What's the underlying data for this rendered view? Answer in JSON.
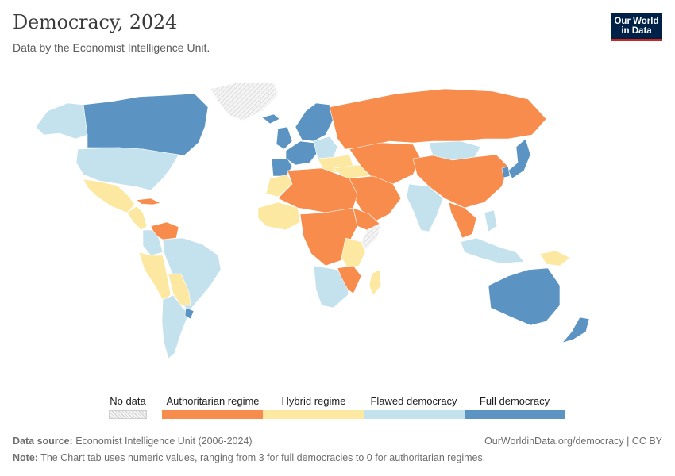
{
  "header": {
    "title": "Democracy, 2024",
    "subtitle": "Data by the Economist Intelligence Unit."
  },
  "logo": {
    "line1": "Our World",
    "line2": "in Data"
  },
  "legend": {
    "items": [
      {
        "label": "No data",
        "color": "hatch"
      },
      {
        "label": "Authoritarian regime",
        "color": "#f78c4c"
      },
      {
        "label": "Hybrid regime",
        "color": "#fce8a1"
      },
      {
        "label": "Flawed democracy",
        "color": "#c4e2ed"
      },
      {
        "label": "Full democracy",
        "color": "#5b93c3"
      }
    ]
  },
  "map": {
    "regions": [
      {
        "name": "canada",
        "category": "Full democracy"
      },
      {
        "name": "alaska",
        "category": "Flawed democracy"
      },
      {
        "name": "greenland",
        "category": "No data"
      },
      {
        "name": "usa",
        "category": "Flawed democracy"
      },
      {
        "name": "mexico",
        "category": "Hybrid regime"
      },
      {
        "name": "central-america",
        "category": "Hybrid regime"
      },
      {
        "name": "cuba",
        "category": "Authoritarian regime"
      },
      {
        "name": "venezuela",
        "category": "Authoritarian regime"
      },
      {
        "name": "colombia",
        "category": "Flawed democracy"
      },
      {
        "name": "ecuador-peru",
        "category": "Hybrid regime"
      },
      {
        "name": "brazil",
        "category": "Flawed democracy"
      },
      {
        "name": "bolivia-paraguay",
        "category": "Hybrid regime"
      },
      {
        "name": "argentina-chile",
        "category": "Flawed democracy"
      },
      {
        "name": "uruguay",
        "category": "Full democracy"
      },
      {
        "name": "iceland",
        "category": "Full democracy"
      },
      {
        "name": "scandinavia",
        "category": "Full democracy"
      },
      {
        "name": "uk-ireland",
        "category": "Full democracy"
      },
      {
        "name": "western-europe",
        "category": "Full democracy"
      },
      {
        "name": "iberia",
        "category": "Full democracy"
      },
      {
        "name": "central-europe",
        "category": "Flawed democracy"
      },
      {
        "name": "eastern-europe",
        "category": "Hybrid regime"
      },
      {
        "name": "turkey",
        "category": "Hybrid regime"
      },
      {
        "name": "russia",
        "category": "Authoritarian regime"
      },
      {
        "name": "kazakhstan-central-asia",
        "category": "Authoritarian regime"
      },
      {
        "name": "mongolia",
        "category": "Flawed democracy"
      },
      {
        "name": "china",
        "category": "Authoritarian regime"
      },
      {
        "name": "japan",
        "category": "Full democracy"
      },
      {
        "name": "south-korea",
        "category": "Full democracy"
      },
      {
        "name": "middle-east",
        "category": "Authoritarian regime"
      },
      {
        "name": "india",
        "category": "Flawed democracy"
      },
      {
        "name": "southeast-asia-mainland",
        "category": "Authoritarian regime"
      },
      {
        "name": "malaysia-indonesia",
        "category": "Flawed democracy"
      },
      {
        "name": "philippines",
        "category": "Flawed democracy"
      },
      {
        "name": "png",
        "category": "Hybrid regime"
      },
      {
        "name": "australia",
        "category": "Full democracy"
      },
      {
        "name": "new-zealand",
        "category": "Full democracy"
      },
      {
        "name": "morocco",
        "category": "Hybrid regime"
      },
      {
        "name": "north-africa",
        "category": "Authoritarian regime"
      },
      {
        "name": "west-africa",
        "category": "Hybrid regime"
      },
      {
        "name": "central-africa",
        "category": "Authoritarian regime"
      },
      {
        "name": "east-africa",
        "category": "Hybrid regime"
      },
      {
        "name": "horn-of-africa",
        "category": "Authoritarian regime"
      },
      {
        "name": "somalia",
        "category": "No data"
      },
      {
        "name": "southern-africa",
        "category": "Flawed democracy"
      },
      {
        "name": "mozambique-zimbabwe",
        "category": "Authoritarian regime"
      },
      {
        "name": "madagascar",
        "category": "Hybrid regime"
      }
    ]
  },
  "footer": {
    "source_label": "Data source:",
    "source_text": "Economist Intelligence Unit (2006-2024)",
    "url": "OurWorldinData.org/democracy | CC BY",
    "note_label": "Note:",
    "note_text": "The Chart tab uses numeric values, ranging from 3 for full democracies to 0 for authoritarian regimes."
  }
}
